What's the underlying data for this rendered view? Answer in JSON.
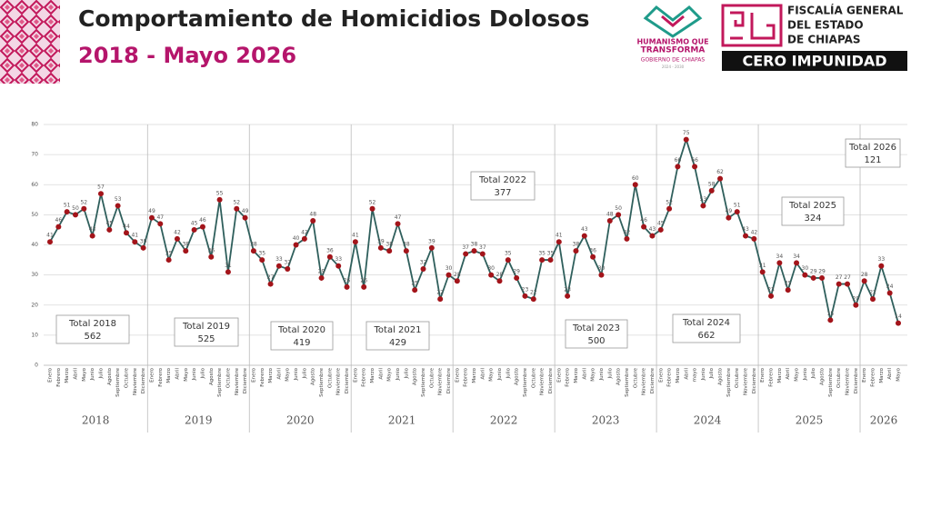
{
  "header": {
    "title": "Comportamiento de Homicidios Dolosos",
    "subtitle": "2018 - Mayo 2026",
    "logo_left_1": "HUMANISMO QUE",
    "logo_left_2": "TRANSFORMA",
    "logo_left_3": "GOBIERNO DE CHIAPAS",
    "logo_left_4": "2024 - 2030",
    "logo_right_1": "FISCALÍA GENERAL",
    "logo_right_2": "DEL ESTADO",
    "logo_right_3": "DE CHIAPAS",
    "logo_right_4": "CERO IMPUNIDAD"
  },
  "chart_data": {
    "type": "line",
    "line_color": "#2f5f5c",
    "marker_color": "#a3141a",
    "ylim": [
      0,
      80
    ],
    "yticks": [
      0,
      10,
      20,
      30,
      40,
      50,
      60,
      70,
      80
    ],
    "grid": true,
    "groups": [
      {
        "year": "2018",
        "total_label": "Total 2018",
        "total": 562,
        "categories": [
          "Enero",
          "Febrero",
          "Marzo",
          "Abril",
          "Mayo",
          "Junio",
          "Julio",
          "Agosto",
          "Septiembre",
          "Octubre",
          "Noviembre",
          "Diciembre"
        ],
        "values": [
          41,
          46,
          51,
          50,
          52,
          43,
          57,
          45,
          53,
          44,
          41,
          39
        ]
      },
      {
        "year": "2019",
        "total_label": "Total 2019",
        "total": 525,
        "categories": [
          "Enero",
          "Febrero",
          "Marzo",
          "Abril",
          "Mayo",
          "Junio",
          "Julio",
          "Agosto",
          "Septiembre",
          "Octubre",
          "Noviembre",
          "Diciembre"
        ],
        "values": [
          49,
          47,
          35,
          42,
          38,
          45,
          46,
          36,
          55,
          31,
          52,
          49
        ]
      },
      {
        "year": "2020",
        "total_label": "Total 2020",
        "total": 419,
        "categories": [
          "Enero",
          "Febrero",
          "Marzo",
          "Abril",
          "Mayo",
          "Junio",
          "Julio",
          "Agosto",
          "Septiembre",
          "Octubre",
          "Noviembre",
          "Diciembre"
        ],
        "values": [
          38,
          35,
          27,
          33,
          32,
          40,
          42,
          48,
          29,
          36,
          33,
          26
        ]
      },
      {
        "year": "2021",
        "total_label": "Total 2021",
        "total": 429,
        "categories": [
          "Enero",
          "Febrero",
          "Marzo",
          "Abril",
          "Mayo",
          "Junio",
          "Julio",
          "Agosto",
          "Septiembre",
          "Octubre",
          "Noviembre",
          "Diciembre"
        ],
        "values": [
          41,
          26,
          52,
          39,
          38,
          47,
          38,
          25,
          32,
          39,
          22,
          30
        ]
      },
      {
        "year": "2022",
        "total_label": "Total 2022",
        "total": 377,
        "categories": [
          "Enero",
          "Febrero",
          "Marzo",
          "Abril",
          "Mayo",
          "Junio",
          "Julio",
          "Agosto",
          "Septiembre",
          "Octubre",
          "Noviembre",
          "Diciembre"
        ],
        "values": [
          28,
          37,
          38,
          37,
          30,
          28,
          35,
          29,
          23,
          22,
          35,
          35
        ]
      },
      {
        "year": "2023",
        "total_label": "Total 2023",
        "total": 500,
        "categories": [
          "Enero",
          "Febrero",
          "Marzo",
          "Abril",
          "Mayo",
          "Junio",
          "Julio",
          "Agosto",
          "Septiembre",
          "Octubre",
          "Noviembre",
          "Diciembre"
        ],
        "values": [
          41,
          23,
          38,
          43,
          36,
          30,
          48,
          50,
          42,
          60,
          46,
          43
        ]
      },
      {
        "year": "2024",
        "total_label": "Total 2024",
        "total": 662,
        "categories": [
          "Enero",
          "Febrero",
          "Marzo",
          "Abril",
          "mayo",
          "Junio",
          "Julio",
          "Agosto",
          "Septiembre",
          "Octubre",
          "Noviembre",
          "Diciembre"
        ],
        "values": [
          45,
          52,
          66,
          75,
          66,
          53,
          58,
          62,
          49,
          51,
          43,
          42
        ]
      },
      {
        "year": "2025",
        "total_label": "Total 2025",
        "total": 324,
        "categories": [
          "Enero",
          "Febrero",
          "Marzo",
          "Abril",
          "Mayo",
          "Junio",
          "Julio",
          "Agosto",
          "Septiembre",
          "Octubre",
          "Noviembre",
          "Diciembre"
        ],
        "values": [
          31,
          23,
          34,
          25,
          34,
          30,
          29,
          29,
          15,
          27,
          27,
          20
        ]
      },
      {
        "year": "2026",
        "total_label": "Total 2026",
        "total": 121,
        "categories": [
          "Enero",
          "Febrero",
          "Marzo",
          "Abril",
          "Mayo"
        ],
        "values": [
          28,
          22,
          33,
          24,
          14
        ]
      }
    ]
  }
}
